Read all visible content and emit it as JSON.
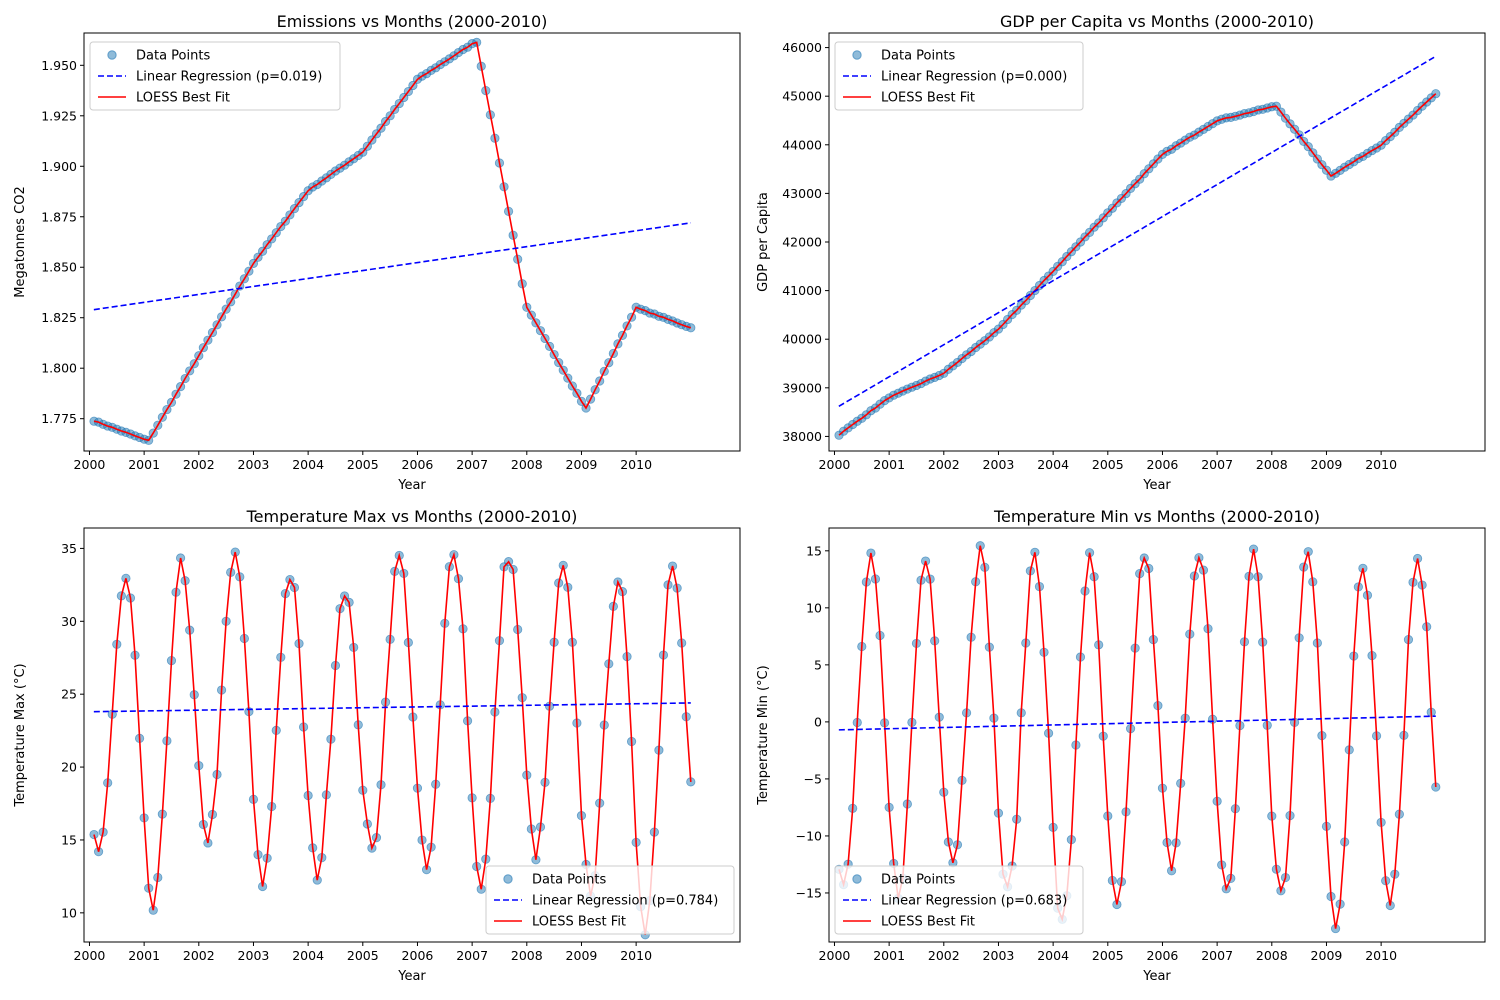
{
  "chart_data": [
    {
      "type": "scatter",
      "title": "Emissions vs Months (2000-2010)",
      "xlabel": "Year",
      "ylabel": "Megatonnes CO2",
      "xlim": [
        1999.9,
        2011.9
      ],
      "ylim": [
        1.759,
        1.966
      ],
      "xticks": [
        2000,
        2001,
        2002,
        2003,
        2004,
        2005,
        2006,
        2007,
        2008,
        2009,
        2010
      ],
      "xtick_labels": [
        "2000",
        "2001",
        "2002",
        "2003",
        "2004",
        "2005",
        "2006",
        "2007",
        "2008",
        "2009",
        "2010"
      ],
      "yticks": [
        1.775,
        1.8,
        1.825,
        1.85,
        1.875,
        1.9,
        1.925,
        1.95
      ],
      "ytick_labels": [
        "1.775",
        "1.800",
        "1.825",
        "1.850",
        "1.875",
        "1.900",
        "1.925",
        "1.950"
      ],
      "legend_position": "upper-left",
      "legend": [
        "Data Points",
        "Linear Regression (p=0.019)",
        "LOESS Best Fit"
      ],
      "regression": {
        "x": [
          2000.08,
          2011.0
        ],
        "y": [
          1.829,
          1.872
        ]
      },
      "anchors": [
        [
          2000.08,
          1.774
        ],
        [
          2001.08,
          1.764
        ],
        [
          2003.0,
          1.852
        ],
        [
          2004.0,
          1.888
        ],
        [
          2005.0,
          1.907
        ],
        [
          2006.0,
          1.943
        ],
        [
          2007.08,
          1.962
        ],
        [
          2008.0,
          1.83
        ],
        [
          2009.08,
          1.78
        ],
        [
          2010.0,
          1.83
        ],
        [
          2011.0,
          1.82
        ]
      ]
    },
    {
      "type": "scatter",
      "title": "GDP per Capita vs Months (2000-2010)",
      "xlabel": "Year",
      "ylabel": "GDP per Capita",
      "xlim": [
        1999.9,
        2011.9
      ],
      "ylim": [
        37700,
        46300
      ],
      "xticks": [
        2000,
        2001,
        2002,
        2003,
        2004,
        2005,
        2006,
        2007,
        2008,
        2009,
        2010
      ],
      "xtick_labels": [
        "2000",
        "2001",
        "2002",
        "2003",
        "2004",
        "2005",
        "2006",
        "2007",
        "2008",
        "2009",
        "2010"
      ],
      "yticks": [
        38000,
        39000,
        40000,
        41000,
        42000,
        43000,
        44000,
        45000,
        46000
      ],
      "ytick_labels": [
        "38000",
        "39000",
        "40000",
        "41000",
        "42000",
        "43000",
        "44000",
        "45000",
        "46000"
      ],
      "legend_position": "upper-left",
      "legend": [
        "Data Points",
        "Linear Regression (p=0.000)",
        "LOESS Best Fit"
      ],
      "regression": {
        "x": [
          2000.08,
          2011.0
        ],
        "y": [
          38620,
          45820
        ]
      },
      "anchors": [
        [
          2000.08,
          38030
        ],
        [
          2001.0,
          38800
        ],
        [
          2002.0,
          39300
        ],
        [
          2003.0,
          40200
        ],
        [
          2004.0,
          41400
        ],
        [
          2005.0,
          42600
        ],
        [
          2006.0,
          43800
        ],
        [
          2007.0,
          44500
        ],
        [
          2008.08,
          44800
        ],
        [
          2009.08,
          43360
        ],
        [
          2010.0,
          44000
        ],
        [
          2011.0,
          45050
        ]
      ]
    },
    {
      "type": "scatter",
      "title": "Temperature Max vs Months (2000-2010)",
      "xlabel": "Year",
      "ylabel": "Temperature Max (°C)",
      "xlim": [
        1999.9,
        2011.9
      ],
      "ylim": [
        8.0,
        36.4
      ],
      "xticks": [
        2000,
        2001,
        2002,
        2003,
        2004,
        2005,
        2006,
        2007,
        2008,
        2009,
        2010
      ],
      "xtick_labels": [
        "2000",
        "2001",
        "2002",
        "2003",
        "2004",
        "2005",
        "2006",
        "2007",
        "2008",
        "2009",
        "2010"
      ],
      "yticks": [
        10,
        15,
        20,
        25,
        30,
        35
      ],
      "ytick_labels": [
        "10",
        "15",
        "20",
        "25",
        "30",
        "35"
      ],
      "legend_position": "lower-right",
      "legend": [
        "Data Points",
        "Linear Regression (p=0.784)",
        "LOESS Best Fit"
      ],
      "regression": {
        "x": [
          2000.08,
          2011.0
        ],
        "y": [
          23.8,
          24.4
        ]
      },
      "seasonal": {
        "mid": 23.5,
        "amp": 10.5,
        "peak_month": 8
      },
      "peaks": [
        32.8,
        33.8,
        34.5,
        33.2,
        32.3,
        34.4,
        35.1,
        34.7,
        33.5,
        33.0,
        34.2
      ],
      "troughs": [
        14.3,
        10.2,
        15.1,
        12.1,
        12.7,
        14.2,
        12.9,
        12.0,
        14.1,
        11.6,
        9.2,
        13.7
      ]
    },
    {
      "type": "scatter",
      "title": "Temperature Min vs Months (2000-2010)",
      "xlabel": "Year",
      "ylabel": "Temperature Min (°C)",
      "xlim": [
        1999.9,
        2011.9
      ],
      "ylim": [
        -19.3,
        17.0
      ],
      "xticks": [
        2000,
        2001,
        2002,
        2003,
        2004,
        2005,
        2006,
        2007,
        2008,
        2009,
        2010
      ],
      "xtick_labels": [
        "2000",
        "2001",
        "2002",
        "2003",
        "2004",
        "2005",
        "2006",
        "2007",
        "2008",
        "2009",
        "2010"
      ],
      "yticks": [
        -15,
        -10,
        -5,
        0,
        5,
        10,
        15
      ],
      "ytick_labels": [
        "−15",
        "−10",
        "−5",
        "0",
        "5",
        "10",
        "15"
      ],
      "legend_position": "lower-left",
      "legend": [
        "Data Points",
        "Linear Regression (p=0.683)",
        "LOESS Best Fit"
      ],
      "regression": {
        "x": [
          2000.08,
          2011.0
        ],
        "y": [
          -0.7,
          0.5
        ]
      },
      "seasonal": {
        "mid": 0.0,
        "amp": 15.0,
        "peak_month": 8
      },
      "peaks": [
        14.0,
        14.3,
        14.9,
        15.0,
        14.1,
        14.7,
        15.2,
        14.7,
        14.8,
        13.2,
        14.4
      ],
      "troughs": [
        -14.8,
        -14.9,
        -12.1,
        -15.2,
        -18.0,
        -16.6,
        -13.0,
        -15.2,
        -15.3,
        -17.5,
        -15.3,
        -12.0
      ]
    }
  ],
  "colors": {
    "points": "#1f77b4",
    "regression": "#0000ff",
    "loess": "#ff0000"
  }
}
